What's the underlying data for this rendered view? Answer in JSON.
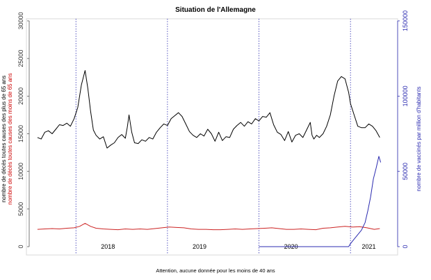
{
  "chart_data": {
    "type": "line",
    "title": "Situation de l'Allemagne",
    "note": "Attention, aucune donnée pour les moins de 40 ans",
    "ylabel_left_black": "nombre de décès toutes causes des plus de 65 ans",
    "ylabel_left_red": "nombre de décès toutes causes des moins de 65 ans",
    "ylabel_right": "nombre de vaccinés par million d'habitants",
    "yaxis_left": {
      "ylim": [
        0,
        30000
      ],
      "ticks": [
        0,
        5000,
        10000,
        15000,
        20000,
        25000,
        30000
      ]
    },
    "yaxis_right": {
      "ylim": [
        0,
        150000
      ],
      "ticks": [
        0,
        50000,
        100000,
        150000
      ]
    },
    "year_labels": [
      {
        "label": "2018",
        "x": 2018.35
      },
      {
        "label": "2019",
        "x": 2019.35
      },
      {
        "label": "2020",
        "x": 2020.35
      },
      {
        "label": "2021",
        "x": 2021.2
      }
    ],
    "year_boundaries": [
      2018,
      2019,
      2020,
      2021
    ],
    "xlim": [
      2017.55,
      2021.5
    ],
    "colors": {
      "deaths_65_plus": "#000000",
      "deaths_under_65": "#cc2222",
      "vaccinated": "#2b2bb0",
      "boundaries": "#2b2bb0"
    },
    "series": [
      {
        "name": "nombre de décès toutes causes des plus de 65 ans",
        "axis": "left",
        "x": [
          2017.58,
          2017.62,
          2017.66,
          2017.7,
          2017.74,
          2017.78,
          2017.82,
          2017.86,
          2017.9,
          2017.94,
          2017.98,
          2018.02,
          2018.06,
          2018.1,
          2018.13,
          2018.16,
          2018.19,
          2018.22,
          2018.26,
          2018.3,
          2018.34,
          2018.38,
          2018.42,
          2018.46,
          2018.5,
          2018.54,
          2018.56,
          2018.58,
          2018.61,
          2018.64,
          2018.68,
          2018.72,
          2018.76,
          2018.8,
          2018.84,
          2018.88,
          2018.92,
          2018.96,
          2019.0,
          2019.04,
          2019.08,
          2019.12,
          2019.16,
          2019.2,
          2019.24,
          2019.28,
          2019.32,
          2019.36,
          2019.4,
          2019.44,
          2019.48,
          2019.52,
          2019.56,
          2019.6,
          2019.64,
          2019.68,
          2019.72,
          2019.76,
          2019.8,
          2019.84,
          2019.88,
          2019.92,
          2019.96,
          2020.0,
          2020.04,
          2020.08,
          2020.12,
          2020.16,
          2020.2,
          2020.24,
          2020.28,
          2020.32,
          2020.36,
          2020.4,
          2020.44,
          2020.48,
          2020.52,
          2020.56,
          2020.58,
          2020.6,
          2020.63,
          2020.66,
          2020.7,
          2020.74,
          2020.78,
          2020.82,
          2020.86,
          2020.9,
          2020.94,
          2020.98,
          2021.0,
          2021.04,
          2021.08,
          2021.12,
          2021.16,
          2021.2,
          2021.24,
          2021.28,
          2021.32
        ],
        "values": [
          14500,
          14300,
          15200,
          15400,
          15000,
          15600,
          16200,
          16100,
          16400,
          16000,
          17000,
          18500,
          21500,
          23400,
          21000,
          18000,
          15500,
          14800,
          14300,
          14600,
          13100,
          13500,
          13800,
          14500,
          14900,
          14400,
          15800,
          17500,
          15200,
          13800,
          13700,
          14200,
          14000,
          14500,
          14300,
          15200,
          15800,
          16300,
          16100,
          17000,
          17400,
          17800,
          17300,
          16300,
          15300,
          14800,
          14500,
          15000,
          14700,
          15600,
          15000,
          14000,
          15200,
          14100,
          14600,
          14500,
          15600,
          16100,
          16500,
          16000,
          16600,
          16300,
          17000,
          16700,
          17300,
          17200,
          17800,
          16200,
          15200,
          14900,
          14100,
          15300,
          13900,
          14800,
          15000,
          14500,
          15500,
          16500,
          14800,
          14300,
          14800,
          14500,
          15000,
          16000,
          17500,
          20000,
          22000,
          22600,
          22300,
          20500,
          19000,
          17500,
          16000,
          15800,
          15800,
          16300,
          16000,
          15400,
          14500
        ]
      },
      {
        "name": "nombre de décès toutes causes des moins de 65 ans",
        "axis": "left",
        "x": [
          2017.58,
          2017.66,
          2017.74,
          2017.82,
          2017.9,
          2017.98,
          2018.04,
          2018.1,
          2018.16,
          2018.22,
          2018.3,
          2018.38,
          2018.46,
          2018.54,
          2018.62,
          2018.7,
          2018.78,
          2018.86,
          2018.94,
          2019.02,
          2019.1,
          2019.18,
          2019.26,
          2019.34,
          2019.42,
          2019.5,
          2019.58,
          2019.66,
          2019.74,
          2019.82,
          2019.9,
          2019.98,
          2020.06,
          2020.14,
          2020.22,
          2020.3,
          2020.38,
          2020.46,
          2020.54,
          2020.62,
          2020.7,
          2020.78,
          2020.86,
          2020.94,
          2021.02,
          2021.1,
          2021.18,
          2021.26,
          2021.32
        ],
        "values": [
          2300,
          2350,
          2400,
          2350,
          2450,
          2500,
          2700,
          3100,
          2700,
          2450,
          2350,
          2300,
          2250,
          2350,
          2300,
          2350,
          2300,
          2400,
          2500,
          2600,
          2550,
          2500,
          2350,
          2300,
          2300,
          2250,
          2250,
          2300,
          2350,
          2300,
          2350,
          2400,
          2450,
          2500,
          2400,
          2300,
          2300,
          2350,
          2300,
          2250,
          2450,
          2500,
          2600,
          2700,
          2600,
          2650,
          2500,
          2300,
          2400
        ]
      },
      {
        "name": "nombre de vaccinés par million d'habitants",
        "axis": "right",
        "x": [
          2020.0,
          2020.2,
          2020.4,
          2020.6,
          2020.8,
          2020.98,
          2021.0,
          2021.04,
          2021.08,
          2021.12,
          2021.16,
          2021.19,
          2021.22,
          2021.25,
          2021.28,
          2021.31,
          2021.33
        ],
        "values": [
          0,
          0,
          0,
          0,
          0,
          0,
          2000,
          5000,
          8000,
          11000,
          16000,
          24000,
          33000,
          45000,
          52000,
          60000,
          56000
        ]
      }
    ]
  }
}
